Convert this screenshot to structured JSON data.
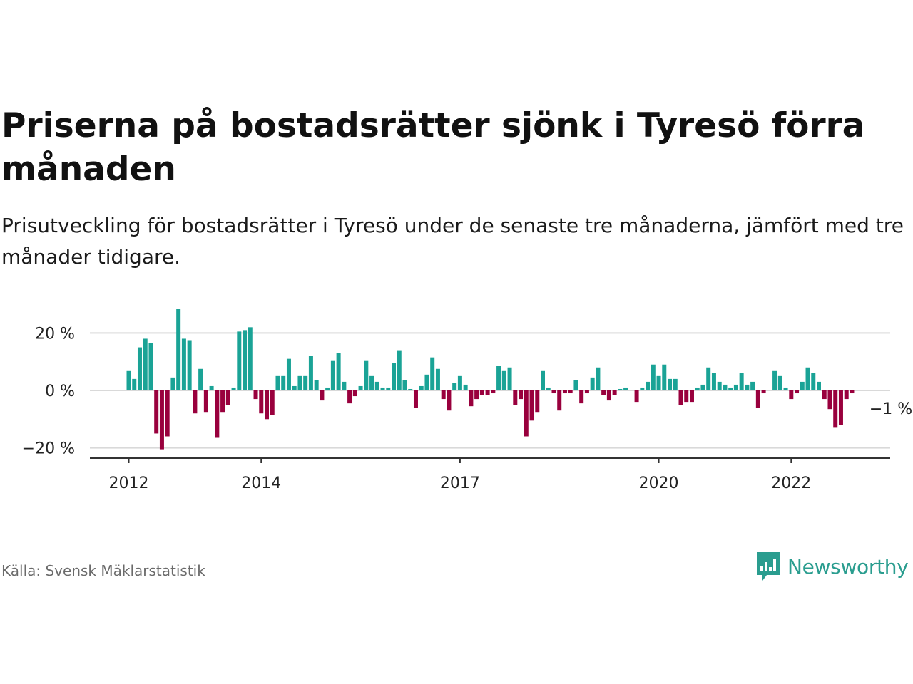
{
  "header": {
    "title": "Priserna på bostadsrätter sjönk i Tyresö förra månaden",
    "subtitle": "Prisutveckling för bostadsrätter i Tyresö under de senaste tre månaderna, jämfört med tre månader tidigare."
  },
  "footer": {
    "source": "Källa: Svensk Mäklarstatistik",
    "brand": "Newsworthy",
    "brand_icon": "newsworthy-logo-icon"
  },
  "colors": {
    "positive": "#1aa396",
    "negative": "#99003d",
    "grid": "#d9d9d9",
    "axis": "#333333",
    "brand": "#2a9d8f"
  },
  "chart_data": {
    "type": "bar",
    "ylabel": "",
    "xlabel": "",
    "ylim": [
      -24,
      30
    ],
    "yticks": [
      {
        "value": 20,
        "label": "20 %"
      },
      {
        "value": 0,
        "label": "0 %"
      },
      {
        "value": -20,
        "label": "−20 %"
      }
    ],
    "xticks": [
      {
        "month_index": 0,
        "label": "2012"
      },
      {
        "month_index": 24,
        "label": "2014"
      },
      {
        "month_index": 60,
        "label": "2017"
      },
      {
        "month_index": 96,
        "label": "2020"
      },
      {
        "month_index": 120,
        "label": "2022"
      }
    ],
    "start": "2012-01",
    "frequency": "monthly",
    "values": [
      7,
      4,
      15,
      18,
      16.5,
      -15,
      -20.5,
      -16,
      4.5,
      28.5,
      18,
      17.5,
      -8,
      7.5,
      -7.5,
      1.5,
      -16.5,
      -7.5,
      -5,
      1,
      20.5,
      21,
      22,
      -3,
      -8,
      -10,
      -8.5,
      5,
      5,
      11,
      1.5,
      5,
      5,
      12,
      3.5,
      -3.5,
      1,
      10.5,
      13,
      3,
      -4.5,
      -2,
      1.5,
      10.5,
      5,
      3,
      1,
      1,
      9.5,
      14,
      3.5,
      0.5,
      -6,
      1.5,
      5.5,
      11.5,
      7.5,
      -3,
      -7,
      2.5,
      5,
      2,
      -5.5,
      -3,
      -1.5,
      -1.5,
      -1,
      8.5,
      7,
      8,
      -5,
      -3,
      -16,
      -10.5,
      -7.5,
      7,
      1,
      -1,
      -7,
      -1,
      -1,
      3.5,
      -4.5,
      -1,
      4.5,
      8,
      -1.5,
      -3.5,
      -1.5,
      0.5,
      1,
      0,
      -4,
      1,
      3,
      9,
      5,
      9,
      4,
      4,
      -5,
      -4,
      -4,
      1,
      2,
      8,
      6,
      3,
      2,
      1,
      2,
      6,
      2,
      3,
      -6,
      -1,
      0,
      7,
      5,
      1,
      -3,
      -1,
      3,
      8,
      6,
      3,
      -3,
      -6.5,
      -13,
      -12,
      -3,
      -1
    ],
    "annotation": {
      "month_index": 137,
      "label": "−1 %"
    }
  }
}
